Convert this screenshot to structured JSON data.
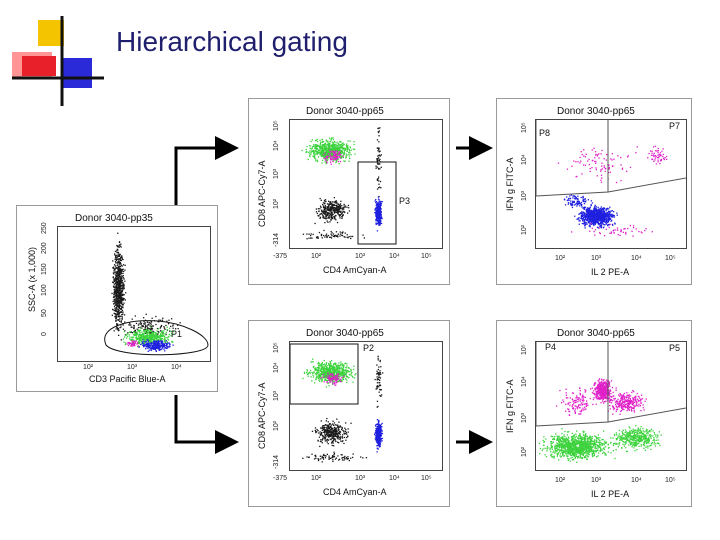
{
  "slide": {
    "title": "Hierarchical gating"
  },
  "colors": {
    "title": "#1f1f6e",
    "ungated": "#1a1a1a",
    "cd8": "#3cd23c",
    "cd4": "#2020e0",
    "cytokine": "#e020c8",
    "logo_yellow": "#f5c400",
    "logo_red": "#e8202a",
    "logo_blue": "#2a2ad8"
  },
  "plots": [
    {
      "id": "root",
      "title": "Donor 3040-pp35",
      "xlabel": "CD3 Pacific Blue-A",
      "ylabel": "SSC-A (x 1,000)",
      "xticks": [
        "10²",
        "10³",
        "10⁴"
      ],
      "yticks": [
        "0",
        "50",
        "100",
        "150",
        "200",
        "250"
      ],
      "gates": [
        "P1"
      ]
    },
    {
      "id": "cd4cd8-a",
      "title": "Donor 3040-pp65",
      "xlabel": "CD4 AmCyan-A",
      "ylabel": "CD8 APC-Cy7-A",
      "xticks": [
        "-375",
        "10²",
        "10³",
        "10⁴",
        "10⁵"
      ],
      "yticks": [
        "-314",
        "10²",
        "10³",
        "10⁴",
        "10⁵"
      ],
      "gates": [
        "P3"
      ]
    },
    {
      "id": "cd4cd8-b",
      "title": "Donor 3040-pp65",
      "xlabel": "CD4 AmCyan-A",
      "ylabel": "CD8 APC-Cy7-A",
      "xticks": [
        "-375",
        "10²",
        "10³",
        "10⁴",
        "10⁵"
      ],
      "yticks": [
        "-314",
        "10²",
        "10³",
        "10⁴",
        "10⁵"
      ],
      "gates": [
        "P2"
      ]
    },
    {
      "id": "cyto-cd4",
      "title": "Donor 3040-pp65",
      "xlabel": "IL 2 PE-A",
      "ylabel": "IFN g FITC-A",
      "xticks": [
        "10²",
        "10³",
        "10⁴",
        "10⁵"
      ],
      "yticks": [
        "10²",
        "10³",
        "10⁴",
        "10⁵"
      ],
      "gates": [
        "P8",
        "P7"
      ]
    },
    {
      "id": "cyto-cd8",
      "title": "Donor 3040-pp65",
      "xlabel": "IL 2 PE-A",
      "ylabel": "IFN g FITC-A",
      "xticks": [
        "10²",
        "10³",
        "10⁴",
        "10⁵"
      ],
      "yticks": [
        "10²",
        "10³",
        "10⁴",
        "10⁵"
      ],
      "gates": [
        "P4",
        "P5"
      ]
    }
  ]
}
